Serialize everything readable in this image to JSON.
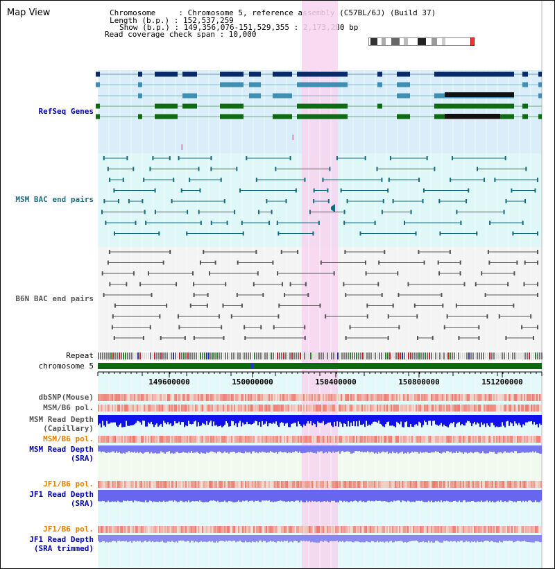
{
  "title": "Map View",
  "info": {
    "chromosome_line": "Chromosome     : Chromosome 5, reference assembly (C57BL/6J) (Build 37)",
    "length_line": "Length (b.p.) : 152,537,259",
    "show_line": "Show (b.p.) : 149,356,076-151,529,355 : 2,173,280 bp",
    "coverage_line": "Read coverage check span : 10,000"
  },
  "tracks": {
    "refseq": "RefSeq Genes",
    "msm_bac": "MSM BAC end pairs",
    "b6n_bac": "B6N BAC end pairs",
    "repeat": "Repeat",
    "chromosome": "chromosome 5",
    "dbsnp": "dbSNP(Mouse)",
    "msm_b6_pol_1": "MSM/B6 pol.",
    "msm_depth_cap_1": "MSM Read Depth",
    "msm_depth_cap_2": "(Capillary)",
    "msm_b6_pol_2": "MSM/B6 pol.",
    "msm_depth_sra_1": "MSM Read Depth",
    "msm_depth_sra_2": "(SRA)",
    "jf1_pol_1": "JF1/B6 pol.",
    "jf1_depth_1": "JF1 Read Depth",
    "jf1_depth_2": "(SRA)",
    "jf1_pol_2": "JF1/B6 pol.",
    "jf1_trim_1": "JF1 Read Depth",
    "jf1_trim_2": "(SRA trimmed)"
  },
  "axis": {
    "ticks": [
      "149600000",
      "150000000",
      "150400000",
      "150800000",
      "151200000"
    ]
  },
  "colors": {
    "refseq_dark": "#0a2a6a",
    "refseq_mid": "#3f8fb5",
    "refseq_green": "#0f6b12",
    "msm_bac": "#136c80",
    "b6n_bac": "#555555",
    "chromosome_bar": "#0d6b0d",
    "highlight": "#f7d5f0",
    "label_blue": "#0000aa",
    "label_teal": "#1f6d80",
    "label_orange": "#e08000"
  }
}
